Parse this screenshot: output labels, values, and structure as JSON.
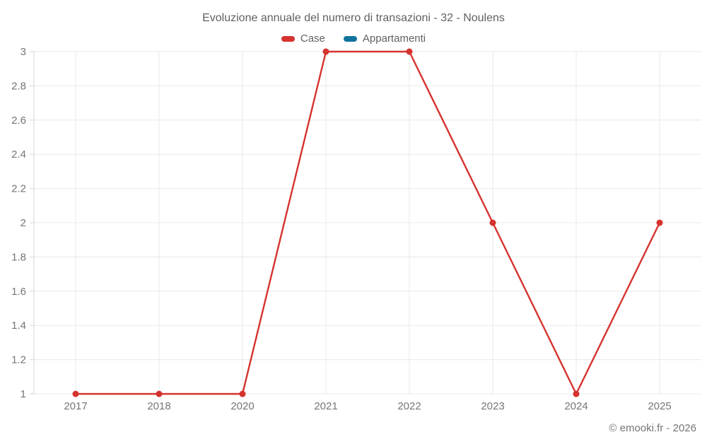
{
  "chart_data": {
    "type": "line",
    "title": "Evoluzione annuale del numero di transazioni - 32 - Noulens",
    "categories": [
      "2017",
      "2018",
      "2020",
      "2021",
      "2022",
      "2023",
      "2024",
      "2025"
    ],
    "series": [
      {
        "name": "Case",
        "color": "#d6322e",
        "values": [
          1,
          1,
          1,
          3,
          3,
          2,
          1,
          2
        ]
      },
      {
        "name": "Appartamenti",
        "color": "#10739e",
        "values": []
      }
    ],
    "xlabel": "",
    "ylabel": "",
    "ylim": [
      1,
      3
    ],
    "ytick_step": 0.2,
    "yticks": [
      "1",
      "1.2",
      "1.4",
      "1.6",
      "1.8",
      "2",
      "2.2",
      "2.4",
      "2.6",
      "2.8",
      "3"
    ],
    "grid": true,
    "legend_position": "top",
    "marker_radius": 4.5,
    "line_width": 2.4
  },
  "footer": {
    "credit": "© emooki.fr - 2026"
  },
  "colors": {
    "grid_line": "#e8e8e8",
    "axis_line": "#d6d6d6",
    "tick_text": "#757575",
    "title_text": "#616161",
    "background": "#ffffff"
  }
}
